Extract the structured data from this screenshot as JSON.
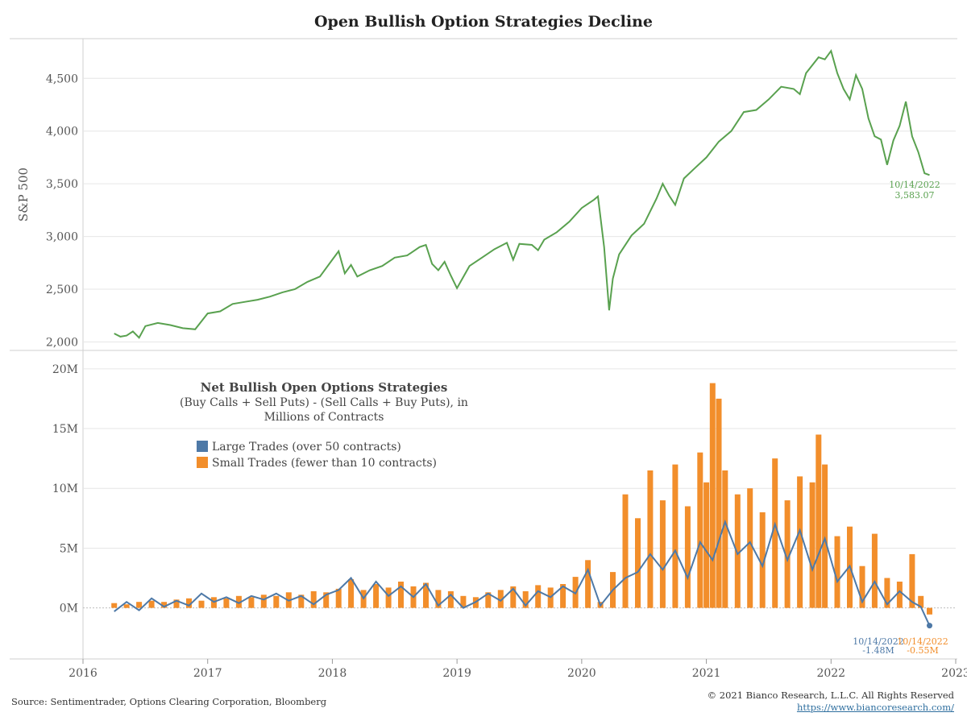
{
  "title": "Open Bullish Option Strategies Decline",
  "source": "Source: Sentimentrader, Options Clearing Corporation, Bloomberg",
  "copyright": "© 2021 Bianco Research, L.L.C. All Rights Reserved",
  "website": "https://www.biancoresearch.com/",
  "colors": {
    "sp500": "#59a14f",
    "large": "#4e79a7",
    "small": "#f28e2b",
    "grid": "#e6e6e6"
  },
  "chart_data": [
    {
      "type": "line",
      "ylabel": "S&P 500",
      "ylim": [
        1950,
        4800
      ],
      "yticks": [
        2000,
        2500,
        3000,
        3500,
        4000,
        4500
      ],
      "ytick_labels": [
        "2,000",
        "2,500",
        "3,000",
        "3,500",
        "4,000",
        "4,500"
      ],
      "grid": true,
      "annotation": {
        "date": "10/14/2022",
        "value": "3,583.07"
      },
      "series": [
        {
          "x": [
            2016.25,
            2016.3,
            2016.35,
            2016.4,
            2016.45,
            2016.5,
            2016.6,
            2016.7,
            2016.8,
            2016.9,
            2017.0,
            2017.1,
            2017.2,
            2017.3,
            2017.4,
            2017.5,
            2017.6,
            2017.7,
            2017.8,
            2017.9,
            2018.0,
            2018.05,
            2018.1,
            2018.15,
            2018.2,
            2018.3,
            2018.4,
            2018.5,
            2018.6,
            2018.7,
            2018.75,
            2018.8,
            2018.85,
            2018.9,
            2018.95,
            2019.0,
            2019.1,
            2019.2,
            2019.3,
            2019.4,
            2019.45,
            2019.5,
            2019.6,
            2019.65,
            2019.7,
            2019.8,
            2019.9,
            2020.0,
            2020.1,
            2020.13,
            2020.18,
            2020.22,
            2020.25,
            2020.3,
            2020.4,
            2020.5,
            2020.6,
            2020.65,
            2020.7,
            2020.75,
            2020.82,
            2020.9,
            2021.0,
            2021.1,
            2021.2,
            2021.3,
            2021.4,
            2021.5,
            2021.6,
            2021.7,
            2021.75,
            2021.8,
            2021.9,
            2021.95,
            2022.0,
            2022.05,
            2022.1,
            2022.15,
            2022.2,
            2022.25,
            2022.3,
            2022.35,
            2022.4,
            2022.45,
            2022.5,
            2022.55,
            2022.6,
            2022.65,
            2022.7,
            2022.75,
            2022.79
          ],
          "values": [
            2080,
            2050,
            2060,
            2100,
            2040,
            2150,
            2180,
            2160,
            2130,
            2120,
            2270,
            2290,
            2360,
            2380,
            2400,
            2430,
            2470,
            2500,
            2570,
            2620,
            2780,
            2860,
            2650,
            2730,
            2620,
            2680,
            2720,
            2800,
            2820,
            2900,
            2920,
            2740,
            2680,
            2760,
            2630,
            2510,
            2720,
            2800,
            2880,
            2940,
            2780,
            2930,
            2920,
            2870,
            2970,
            3040,
            3140,
            3270,
            3350,
            3380,
            2900,
            2300,
            2600,
            2830,
            3010,
            3120,
            3360,
            3500,
            3390,
            3300,
            3550,
            3640,
            3750,
            3900,
            4000,
            4180,
            4200,
            4300,
            4420,
            4400,
            4350,
            4550,
            4700,
            4680,
            4760,
            4550,
            4400,
            4300,
            4530,
            4400,
            4120,
            3950,
            3920,
            3680,
            3910,
            4050,
            4280,
            3950,
            3800,
            3600,
            3583
          ]
        }
      ]
    },
    {
      "type": "bar",
      "title": "Net Bullish Open Options Strategies",
      "subtitle": "(Buy Calls + Sell Puts) - (Sell Calls + Buy Puts), in Millions of Contracts",
      "ylim": [
        -4,
        21
      ],
      "yticks": [
        0,
        5,
        10,
        15,
        20
      ],
      "ytick_labels": [
        "0M",
        "5M",
        "10M",
        "15M",
        "20M"
      ],
      "xlim": [
        2016.0,
        2023.0
      ],
      "xticks": [
        2016,
        2017,
        2018,
        2019,
        2020,
        2021,
        2022,
        2023
      ],
      "grid": true,
      "series": [
        {
          "name": "Large Trades (over 50 contracts)",
          "type": "line",
          "x": [
            2016.25,
            2016.35,
            2016.45,
            2016.55,
            2016.65,
            2016.75,
            2016.85,
            2016.95,
            2017.05,
            2017.15,
            2017.25,
            2017.35,
            2017.45,
            2017.55,
            2017.65,
            2017.75,
            2017.85,
            2017.95,
            2018.05,
            2018.15,
            2018.25,
            2018.35,
            2018.45,
            2018.55,
            2018.65,
            2018.75,
            2018.85,
            2018.95,
            2019.05,
            2019.15,
            2019.25,
            2019.35,
            2019.45,
            2019.55,
            2019.65,
            2019.75,
            2019.85,
            2019.95,
            2020.05,
            2020.15,
            2020.25,
            2020.35,
            2020.45,
            2020.55,
            2020.65,
            2020.75,
            2020.85,
            2020.95,
            2021.05,
            2021.15,
            2021.25,
            2021.35,
            2021.45,
            2021.55,
            2021.65,
            2021.75,
            2021.85,
            2021.95,
            2022.05,
            2022.15,
            2022.25,
            2022.35,
            2022.45,
            2022.55,
            2022.65,
            2022.72,
            2022.79
          ],
          "values": [
            -0.3,
            0.5,
            -0.2,
            0.8,
            0.1,
            0.6,
            0.2,
            1.2,
            0.5,
            0.9,
            0.4,
            1.0,
            0.7,
            1.2,
            0.6,
            1.0,
            0.3,
            1.1,
            1.5,
            2.5,
            0.8,
            2.2,
            1.0,
            1.8,
            0.9,
            2.0,
            0.2,
            1.1,
            0.0,
            0.5,
            1.2,
            0.6,
            1.6,
            0.2,
            1.4,
            0.9,
            1.8,
            1.2,
            3.2,
            0.2,
            1.5,
            2.5,
            3.0,
            4.5,
            3.2,
            4.8,
            2.5,
            5.5,
            4.0,
            7.2,
            4.5,
            5.5,
            3.5,
            7.0,
            4.0,
            6.5,
            3.2,
            5.8,
            2.2,
            3.5,
            0.5,
            2.2,
            0.3,
            1.4,
            0.5,
            0.1,
            -1.48
          ]
        },
        {
          "name": "Small Trades (fewer than 10 contracts)",
          "type": "bar",
          "x": [
            2016.25,
            2016.35,
            2016.45,
            2016.55,
            2016.65,
            2016.75,
            2016.85,
            2016.95,
            2017.05,
            2017.15,
            2017.25,
            2017.35,
            2017.45,
            2017.55,
            2017.65,
            2017.75,
            2017.85,
            2017.95,
            2018.05,
            2018.15,
            2018.25,
            2018.35,
            2018.45,
            2018.55,
            2018.65,
            2018.75,
            2018.85,
            2018.95,
            2019.05,
            2019.15,
            2019.25,
            2019.35,
            2019.45,
            2019.55,
            2019.65,
            2019.75,
            2019.85,
            2019.95,
            2020.05,
            2020.15,
            2020.25,
            2020.35,
            2020.45,
            2020.55,
            2020.65,
            2020.75,
            2020.85,
            2020.95,
            2021.0,
            2021.05,
            2021.1,
            2021.15,
            2021.25,
            2021.35,
            2021.45,
            2021.55,
            2021.65,
            2021.75,
            2021.85,
            2021.9,
            2021.95,
            2022.05,
            2022.15,
            2022.25,
            2022.35,
            2022.45,
            2022.55,
            2022.65,
            2022.72,
            2022.79
          ],
          "values": [
            0.4,
            0.3,
            0.5,
            0.6,
            0.5,
            0.7,
            0.8,
            0.6,
            0.9,
            0.8,
            1.0,
            0.9,
            1.1,
            1.0,
            1.3,
            1.1,
            1.4,
            1.3,
            1.6,
            2.4,
            1.5,
            2.0,
            1.7,
            2.2,
            1.8,
            2.1,
            1.5,
            1.4,
            1.0,
            0.9,
            1.3,
            1.5,
            1.8,
            1.4,
            1.9,
            1.7,
            2.0,
            2.6,
            4.0,
            0.5,
            3.0,
            9.5,
            7.5,
            11.5,
            9.0,
            12.0,
            8.5,
            13.0,
            10.5,
            18.8,
            17.5,
            11.5,
            9.5,
            10.0,
            8.0,
            12.5,
            9.0,
            11.0,
            10.5,
            14.5,
            12.0,
            6.0,
            6.8,
            3.5,
            6.2,
            2.5,
            2.2,
            4.5,
            1.0,
            -0.55
          ]
        }
      ],
      "annotations": [
        {
          "date": "10/14/2022",
          "value": "-1.48M"
        },
        {
          "date": "10/14/2022",
          "value": "-0.55M"
        }
      ]
    }
  ]
}
